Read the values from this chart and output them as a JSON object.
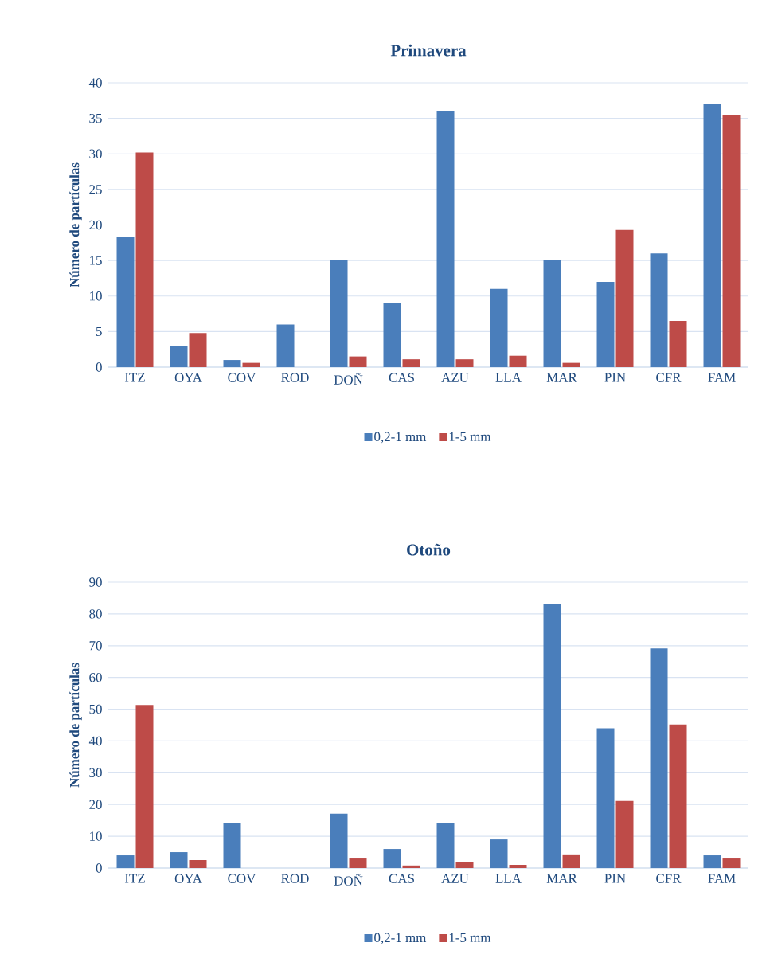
{
  "chart_data": [
    {
      "type": "bar",
      "title": "Primavera",
      "ylabel": "Número de partículas",
      "categories": [
        "ITZ",
        "OYA",
        "COV",
        "ROD",
        "DOÑ",
        "CAS",
        "AZU",
        "LLA",
        "MAR",
        "PIN",
        "CFR",
        "FAM"
      ],
      "series": [
        {
          "name": "0,2-1 mm",
          "color": "#4a7ebb",
          "values": [
            18.3,
            3,
            1,
            6,
            15,
            9,
            36,
            11,
            15,
            12,
            16,
            37
          ]
        },
        {
          "name": "1-5 mm",
          "color": "#be4b48",
          "values": [
            30.2,
            4.8,
            0.6,
            0,
            1.5,
            1.1,
            1.1,
            1.6,
            0.6,
            19.3,
            6.5,
            35.4
          ]
        }
      ],
      "ylim": [
        0,
        40
      ],
      "yticks": [
        0,
        5,
        10,
        15,
        20,
        25,
        30,
        35,
        40
      ],
      "grid": "y",
      "legend": "bottom"
    },
    {
      "type": "bar",
      "title": "Otoño",
      "ylabel": "Número de partículas",
      "categories": [
        "ITZ",
        "OYA",
        "COV",
        "ROD",
        "DOÑ",
        "CAS",
        "AZU",
        "LLA",
        "MAR",
        "PIN",
        "CFR",
        "FAM"
      ],
      "series": [
        {
          "name": "0,2-1 mm",
          "color": "#4a7ebb",
          "values": [
            4,
            5,
            14.1,
            0,
            17.1,
            6,
            14.1,
            9,
            83.2,
            44,
            69.1,
            4
          ]
        },
        {
          "name": "1-5 mm",
          "color": "#be4b48",
          "values": [
            51.3,
            2.5,
            0,
            0,
            3,
            0.8,
            1.8,
            1,
            4.3,
            21.1,
            45.2,
            3
          ]
        }
      ],
      "ylim": [
        0,
        90
      ],
      "yticks": [
        0,
        10,
        20,
        30,
        40,
        50,
        60,
        70,
        80,
        90
      ],
      "grid": "y",
      "legend": "bottom"
    }
  ]
}
